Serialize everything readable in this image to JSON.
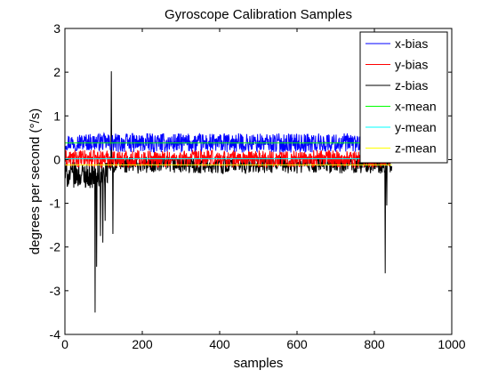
{
  "chart_data": {
    "type": "line",
    "title": "Gyroscope Calibration Samples",
    "xlabel": "samples",
    "ylabel": "degrees per second (°/s)",
    "xlim": [
      0,
      1000
    ],
    "ylim": [
      -4,
      3
    ],
    "xticks": [
      0,
      200,
      400,
      600,
      800,
      1000
    ],
    "yticks": [
      -4,
      -3,
      -2,
      -1,
      0,
      1,
      2,
      3
    ],
    "xtick_labels": [
      "0",
      "200",
      "400",
      "600",
      "800",
      "1000"
    ],
    "ytick_labels": [
      "-4",
      "-3",
      "-2",
      "-1",
      "0",
      "1",
      "2",
      "3"
    ],
    "grid": false,
    "legend_position": "top-right",
    "sample_count": 845,
    "series": [
      {
        "name": "x-bias",
        "color": "#0000ff",
        "kind": "noisy",
        "base": 0.38,
        "amplitude": 0.22,
        "early_segment_end": 110,
        "early_base": 0.4,
        "early_amplitude": 0.2
      },
      {
        "name": "y-bias",
        "color": "#ff0000",
        "kind": "noisy",
        "base": 0.02,
        "amplitude": 0.2
      },
      {
        "name": "z-bias",
        "color": "#000000",
        "kind": "noisy",
        "base": -0.12,
        "amplitude": 0.2,
        "early_segment_end": 110,
        "early_base": -0.35,
        "early_amplitude": 0.3,
        "spikes": [
          {
            "x": 62,
            "y": -0.6
          },
          {
            "x": 78,
            "y": -3.5
          },
          {
            "x": 82,
            "y": -2.45
          },
          {
            "x": 92,
            "y": -1.75
          },
          {
            "x": 98,
            "y": -1.9
          },
          {
            "x": 104,
            "y": -1.4
          },
          {
            "x": 120,
            "y": 2.02
          },
          {
            "x": 124,
            "y": -1.7
          },
          {
            "x": 828,
            "y": -2.6
          },
          {
            "x": 832,
            "y": -1.05
          }
        ]
      },
      {
        "name": "x-mean",
        "color": "#00ff00",
        "kind": "constant",
        "value": 0.38
      },
      {
        "name": "y-mean",
        "color": "#00ffff",
        "kind": "constant",
        "value": 0.02
      },
      {
        "name": "z-mean",
        "color": "#ffff00",
        "kind": "constant",
        "value": -0.12
      }
    ]
  }
}
